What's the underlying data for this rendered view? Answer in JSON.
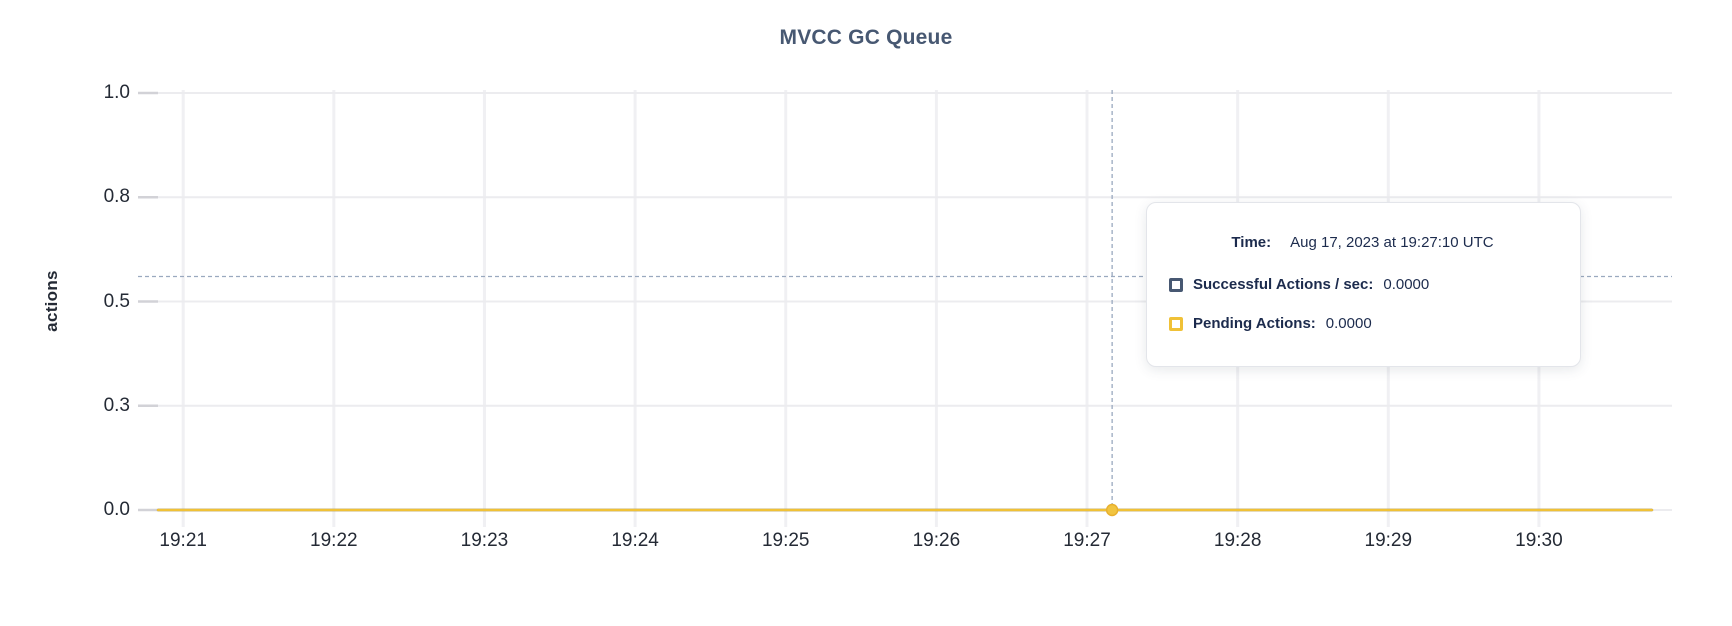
{
  "chart_data": {
    "type": "line",
    "title": "MVCC GC Queue",
    "xlabel": "",
    "ylabel": "actions",
    "x_domain": [
      "19:20:42",
      "19:30:53"
    ],
    "x_ticks": [
      "19:21",
      "19:22",
      "19:23",
      "19:24",
      "19:25",
      "19:26",
      "19:27",
      "19:28",
      "19:29",
      "19:30"
    ],
    "y_domain": [
      0,
      1
    ],
    "y_ticks": [
      {
        "value": 0,
        "label": "0.0"
      },
      {
        "value": 0.25,
        "label": "0.3"
      },
      {
        "value": 0.5,
        "label": "0.5"
      },
      {
        "value": 0.75,
        "label": "0.8"
      },
      {
        "value": 1,
        "label": "1.0"
      }
    ],
    "grid": true,
    "legend_position": "tooltip-only",
    "series": [
      {
        "name": "Successful Actions / sec",
        "color": "#475872",
        "points": [
          {
            "t": "19:20:50",
            "v": 0
          },
          {
            "t": "19:30:45",
            "v": 0
          }
        ]
      },
      {
        "name": "Pending Actions",
        "color": "#F0C137",
        "points": [
          {
            "t": "19:20:50",
            "v": 0
          },
          {
            "t": "19:30:45",
            "v": 0
          }
        ]
      }
    ],
    "hover": {
      "time": "19:27:10",
      "value": 0,
      "cursor_value": 0.56
    },
    "style": {
      "grid_h": "#ececef",
      "grid_v": "#f0f0f3",
      "axis_tick": "#d2d2d7",
      "crosshair": "#9aa9bf",
      "dot_fill": "#f1c440",
      "dot_stroke": "#e8b02e"
    }
  },
  "tooltip": {
    "time_label": "Time:",
    "time_value": "Aug 17, 2023 at 19:27:10 UTC",
    "rows": [
      {
        "label": "Successful Actions / sec:",
        "value": "0.0000",
        "color": "#475872"
      },
      {
        "label": "Pending Actions:",
        "value": "0.0000",
        "color": "#F0C137"
      }
    ]
  }
}
